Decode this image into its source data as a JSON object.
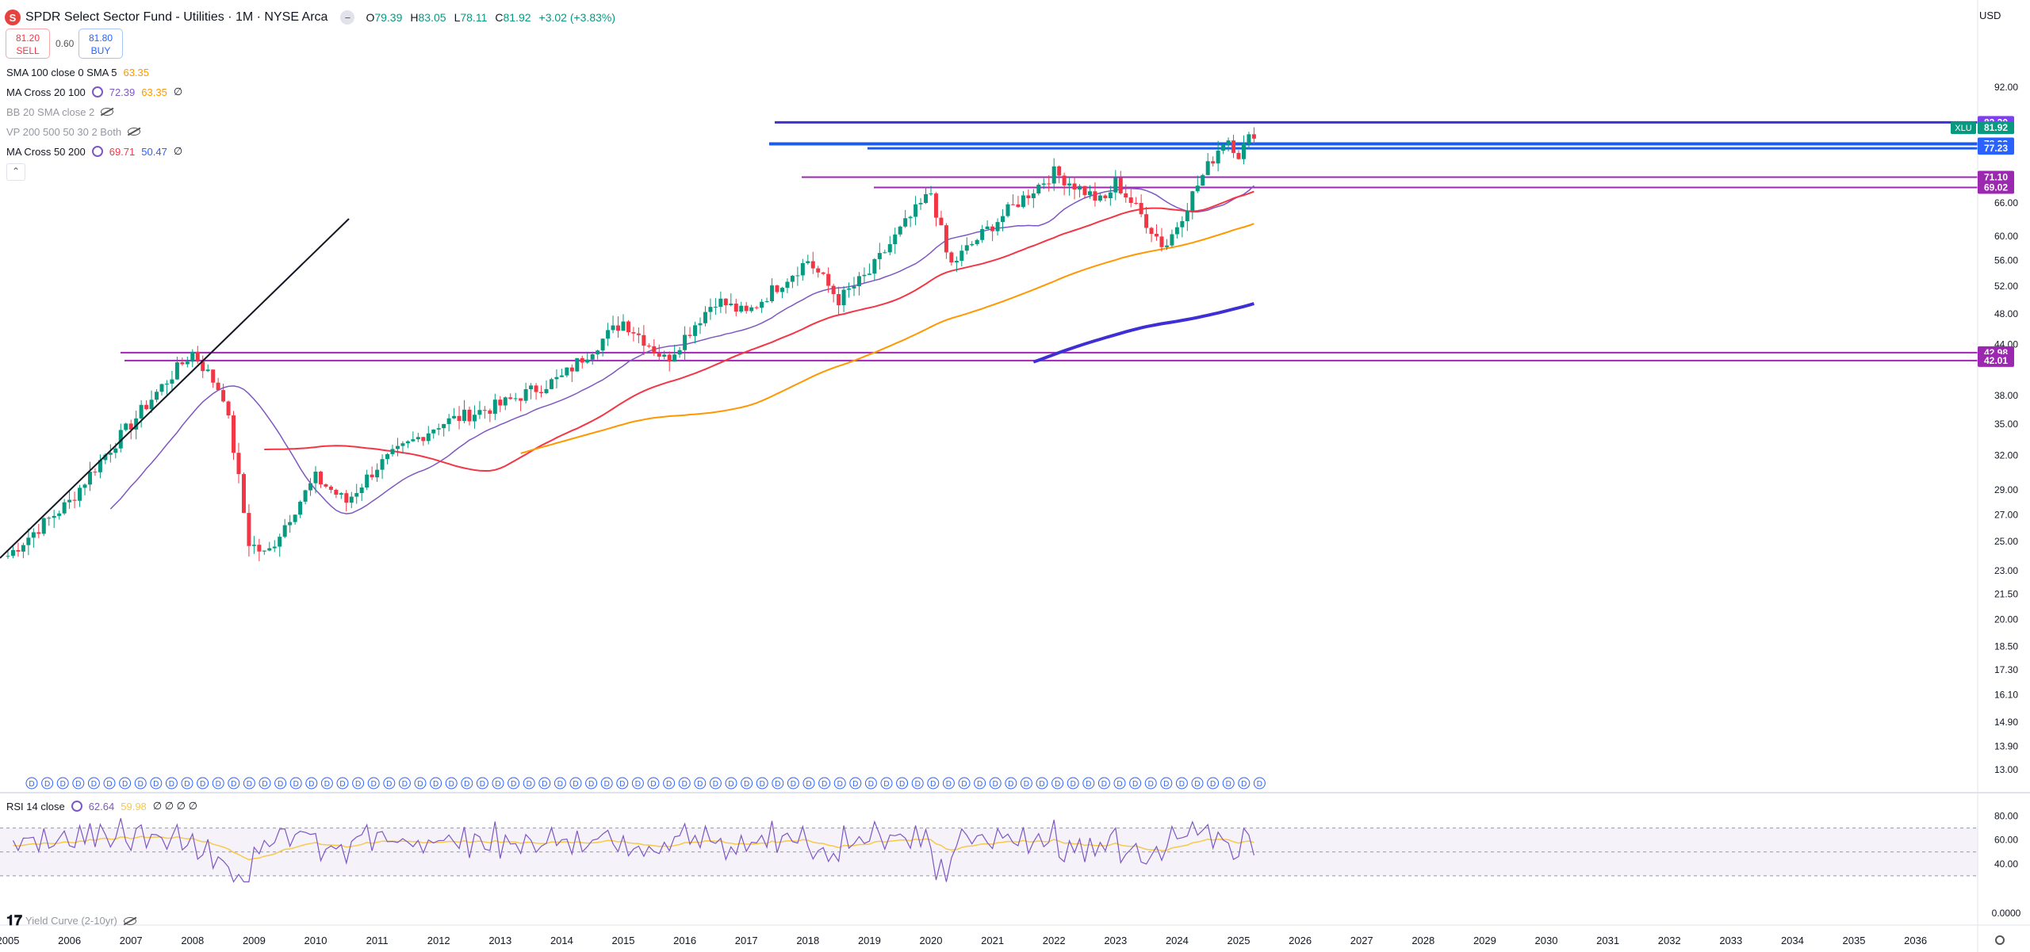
{
  "header": {
    "logo_glyph": "S",
    "title": "SPDR Select Sector Fund - Utilities · 1M · NYSE Arca",
    "collapse_glyph": "−",
    "open_label": "O",
    "open": "79.39",
    "high_label": "H",
    "high": "83.05",
    "low_label": "L",
    "low": "78.11",
    "close_label": "C",
    "close": "81.92",
    "change": "+3.02 (+3.83%)",
    "currency": "USD"
  },
  "trade": {
    "sell_price": "81.20",
    "sell_label": "SELL",
    "spread": "0.60",
    "buy_price": "81.80",
    "buy_label": "BUY"
  },
  "indicators": [
    {
      "name": "SMA 100 close 0 SMA 5",
      "values": [
        "63.35"
      ],
      "colors": [
        "#ff9800"
      ],
      "icon": "none"
    },
    {
      "name": "MA Cross 20 100",
      "values": [
        "72.39",
        "63.35",
        "∅"
      ],
      "colors": [
        "#7e57c2",
        "#ff9800",
        "#131722"
      ],
      "icon": "settings-icon"
    },
    {
      "name": "BB 20 SMA close 2",
      "values": [],
      "colors": [],
      "icon": "eye-off-icon",
      "dim": true
    },
    {
      "name": "VP 200 500 50 30 2 Both",
      "values": [],
      "colors": [],
      "icon": "eye-off-icon",
      "dim": true
    },
    {
      "name": "MA Cross 50 200",
      "values": [
        "69.71",
        "50.47",
        "∅"
      ],
      "colors": [
        "#f23645",
        "#2962ff",
        "#131722"
      ],
      "icon": "settings-icon"
    }
  ],
  "rsi": {
    "name": "RSI 14 close",
    "value": "62.64",
    "value2": "59.98",
    "extra": "∅ ∅ ∅ ∅",
    "ticks": [
      "80.00",
      "60.00",
      "40.00"
    ]
  },
  "yield_curve": {
    "name": "Yield Curve (2-10yr)",
    "tick": "0.0000"
  },
  "price_axis": {
    "ticks": [
      "92.00",
      "66.00",
      "60.00",
      "56.00",
      "52.00",
      "48.00",
      "44.00",
      "38.00",
      "35.00",
      "32.00",
      "29.00",
      "27.00",
      "25.00",
      "23.00",
      "21.50",
      "20.00",
      "18.50",
      "17.30",
      "16.10",
      "14.90",
      "13.90",
      "13.00"
    ],
    "badges": [
      {
        "label": "83.20",
        "color": "#7e3ff2"
      },
      {
        "label": "81.92",
        "color": "#089981",
        "tag": "XLU"
      },
      {
        "label": "78.22",
        "color": "#2962ff"
      },
      {
        "label": "77.23",
        "color": "#2962ff"
      },
      {
        "label": "71.10",
        "color": "#9c27b0"
      },
      {
        "label": "69.02",
        "color": "#9c27b0"
      },
      {
        "label": "42.98",
        "color": "#9c27b0"
      },
      {
        "label": "42.01",
        "color": "#9c27b0"
      }
    ]
  },
  "time_axis": {
    "years": [
      "2005",
      "2006",
      "2007",
      "2008",
      "2009",
      "2010",
      "2011",
      "2012",
      "2013",
      "2014",
      "2015",
      "2016",
      "2017",
      "2018",
      "2019",
      "2020",
      "2021",
      "2022",
      "2023",
      "2024",
      "2025",
      "2026",
      "2027",
      "2028",
      "2029",
      "2030",
      "2031",
      "2032",
      "2033",
      "2034",
      "2035",
      "2036"
    ]
  },
  "dividend_marker": "D",
  "chart_data": {
    "type": "candlestick",
    "title": "SPDR Select Sector Fund - Utilities · 1M · NYSE Arca",
    "log_scale": true,
    "ylim": [
      12.5,
      95
    ],
    "x_range": [
      "2005-01",
      "2036-12"
    ],
    "grid": false,
    "annual_closes_approx": {
      "x": [
        "2005",
        "2006",
        "2007",
        "2008",
        "2009",
        "2010",
        "2011",
        "2012",
        "2013",
        "2014",
        "2015",
        "2016",
        "2017",
        "2018",
        "2019",
        "2020",
        "2021",
        "2022",
        "2023",
        "2024",
        "2025"
      ],
      "y": [
        28,
        33,
        40,
        30,
        29,
        31,
        36,
        35,
        38,
        44,
        43,
        48,
        52,
        53,
        65,
        62,
        72,
        70,
        60,
        72,
        81.92
      ]
    },
    "horizontal_levels": [
      83.2,
      78.22,
      77.23,
      71.1,
      69.02,
      42.98,
      42.01
    ],
    "moving_averages": [
      {
        "name": "SMA 100",
        "value": 63.35,
        "color": "#ff9800"
      },
      {
        "name": "MA 20",
        "value": 72.39,
        "color": "#7e57c2"
      },
      {
        "name": "MA 50",
        "value": 69.71,
        "color": "#f23645"
      },
      {
        "name": "MA 200",
        "value": 50.47,
        "color": "#2962ff"
      }
    ],
    "rsi_range": [
      20,
      85
    ],
    "rsi_last": 62.64
  }
}
